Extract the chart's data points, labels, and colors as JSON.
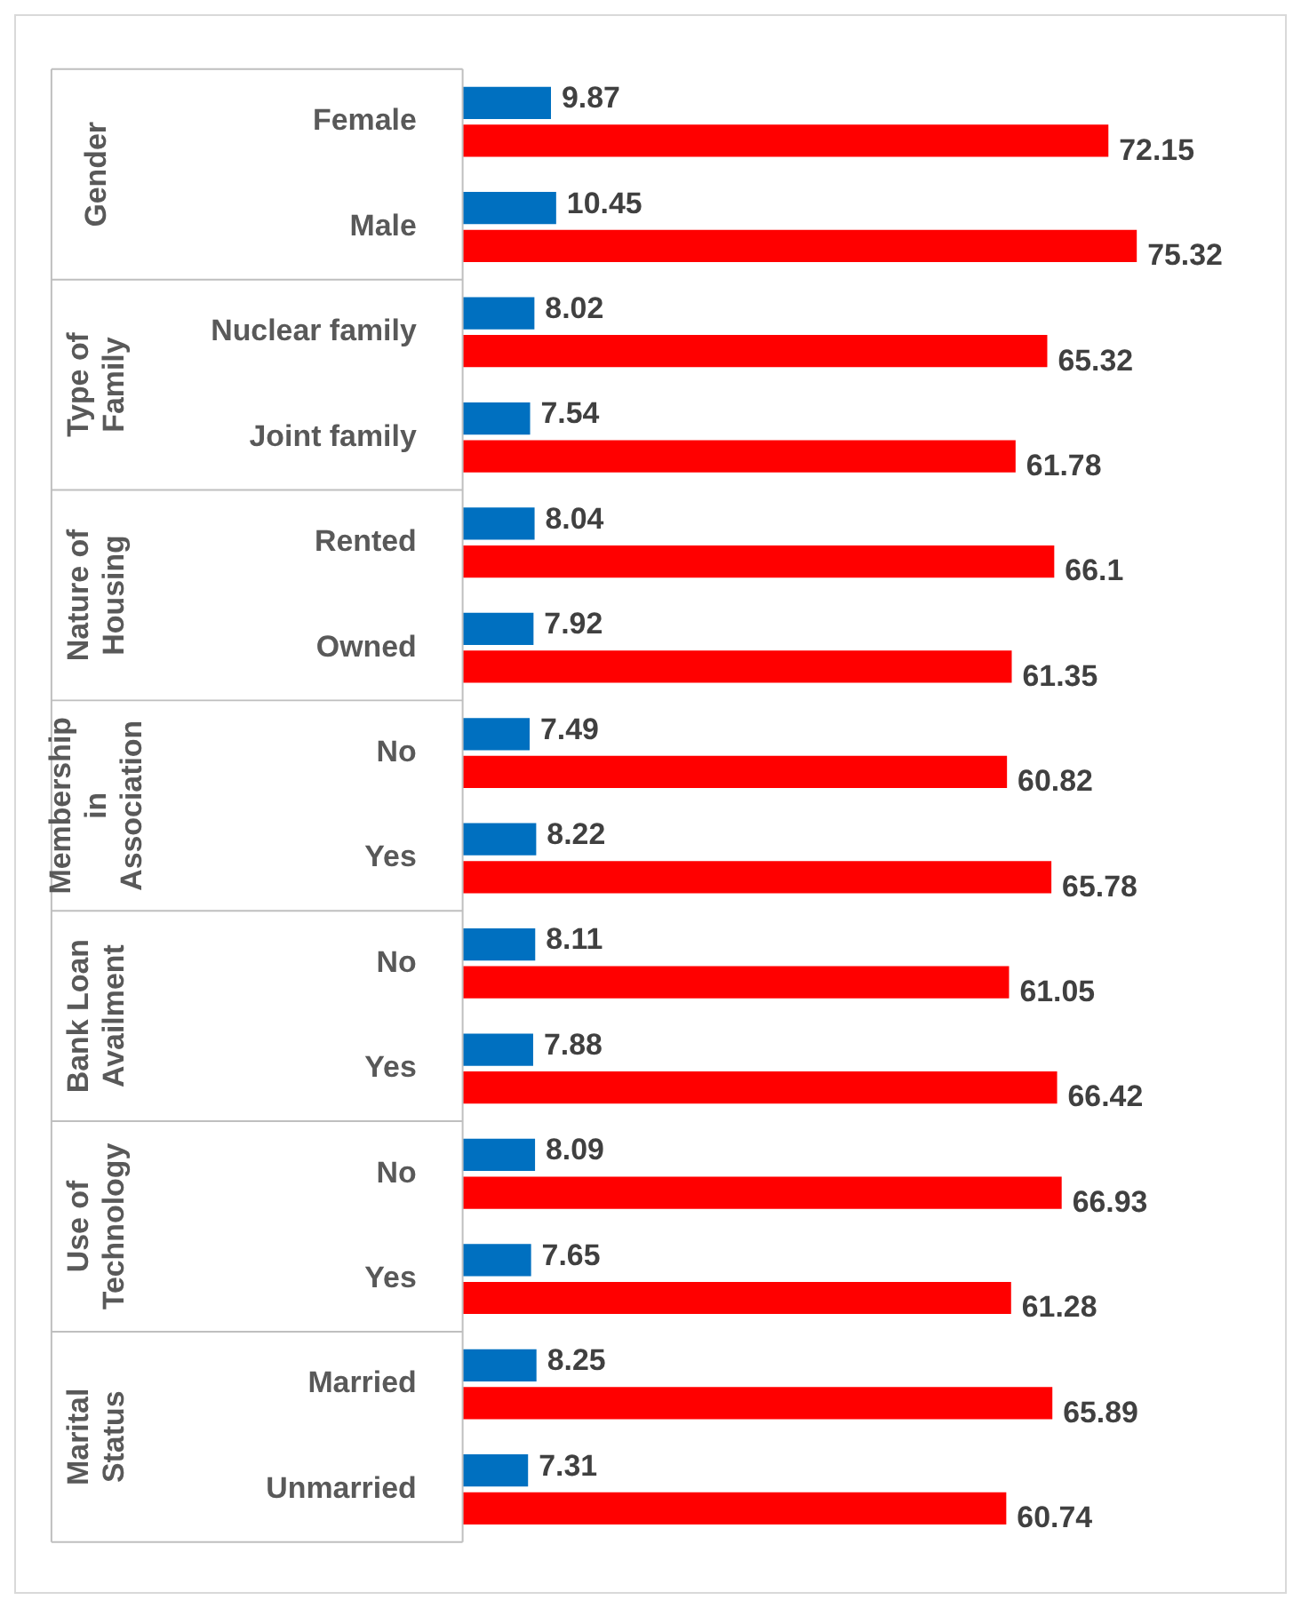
{
  "chart_data": {
    "type": "bar",
    "orientation": "horizontal",
    "data_labels": true,
    "categories": [
      "Female",
      "Male",
      "Nuclear family",
      "Joint family",
      "Rented",
      "Owned",
      "No",
      "Yes",
      "No",
      "Yes",
      "No",
      "Yes",
      "Married",
      "Unmarried"
    ],
    "series": [
      {
        "color": "#0070c0",
        "values": [
          9.87,
          10.45,
          8.02,
          7.54,
          8.04,
          7.92,
          7.49,
          8.22,
          8.11,
          7.88,
          8.09,
          7.65,
          8.25,
          7.31
        ]
      },
      {
        "color": "#ff0000",
        "values": [
          72.15,
          75.32,
          65.32,
          61.78,
          66.1,
          61.35,
          60.82,
          65.78,
          61.05,
          66.42,
          66.93,
          61.28,
          65.89,
          60.74
        ]
      }
    ],
    "annotations": [
      "Gender",
      "Type of Family",
      "Nature of Housing",
      "Membership in Association",
      "Bank Loan Availment",
      "Use of Technology",
      "Marital Status"
    ]
  }
}
